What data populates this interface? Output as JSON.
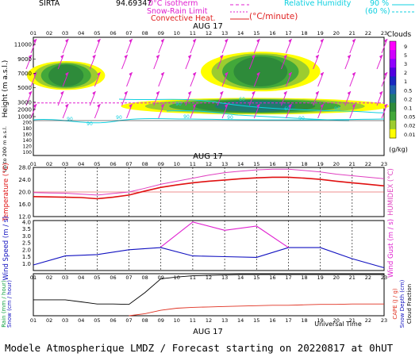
{
  "header": {
    "site": "SIRTA",
    "coords": "94.69347",
    "legend_isotherm_label": "0°C isotherm",
    "legend_snow_label": "Snow-Rain Limit",
    "legend_convective_label": "Convective Heat.",
    "legend_convective_unit": "(°C/minute)",
    "legend_rh_label": "Relative Humidity",
    "legend_rh_90": "90 %",
    "legend_rh_60": "(60 %)"
  },
  "footer": {
    "title": "Modele Atmospherique LMDZ / Forecast starting on 20220817 at 0hUT",
    "time_label": "Universal Time"
  },
  "colors": {
    "isotherm": "#e020d0",
    "humidity": "#10d0e0",
    "temperature": "#e01010",
    "humidex": "#e040c0",
    "wind_speed": "#1010c0",
    "wind_gust": "#e020d0",
    "rain": "#000000",
    "cape": "#e03020"
  },
  "chart_data": [
    {
      "type": "heatmap",
      "name": "clouds",
      "date_label": "AUG 17",
      "x_ticks": [
        "01",
        "02",
        "03",
        "04",
        "05",
        "06",
        "07",
        "08",
        "09",
        "10",
        "11",
        "12",
        "13",
        "14",
        "15",
        "16",
        "17",
        "18",
        "19",
        "20",
        "21",
        "22",
        "23"
      ],
      "ylabel": "Height (m a.s.l.)",
      "ylabel_low": "Up to 200 m a.s.l.",
      "y_ticks_upper": [
        "11000",
        "9000",
        "7000",
        "5000",
        "3000",
        "2000",
        "1000"
      ],
      "y_ticks_lower": [
        "200",
        "180",
        "160",
        "140",
        "120",
        "100"
      ],
      "colorbar_title": "Clouds",
      "colorbar_unit": "(g/kg)",
      "colorbar_labels": [
        "9",
        "5",
        "3",
        "2",
        "1",
        "0.5",
        "0.2",
        "0.1",
        "0.05",
        "0.02",
        "0.01"
      ],
      "colorbar_colors": [
        "#ff00ff",
        "#d000ff",
        "#9000ff",
        "#5000e0",
        "#1828c0",
        "#2060b0",
        "#1f7a70",
        "#2e8b3a",
        "#42a83a",
        "#9ccc30",
        "#fffe00"
      ],
      "cloud_regions": [
        {
          "x_from": 0.6,
          "x_to": 5.5,
          "y_from": 4700,
          "y_to": 8700
        },
        {
          "x_from": 11.5,
          "x_to": 19.0,
          "y_from": 4500,
          "y_to": 10000
        },
        {
          "x_from": 6.5,
          "x_to": 23.3,
          "y_from": 1300,
          "y_to": 3600
        }
      ],
      "humidity_isoline_values": [
        "90",
        "90",
        "90",
        "60",
        "60",
        "90",
        "90",
        "90",
        "90",
        "90"
      ]
    },
    {
      "type": "line",
      "name": "temperature",
      "ylabel": "Temperature (°C)",
      "ylabel_right": "HUMIDEX (°C)",
      "ylim": [
        12,
        28
      ],
      "y_ticks": [
        "28.0",
        "24.0",
        "20.0",
        "16.0",
        "12.0"
      ],
      "x": [
        1,
        2,
        3,
        4,
        5,
        6,
        7,
        8,
        9,
        10,
        11,
        12,
        13,
        14,
        15,
        16,
        17,
        18,
        19,
        20,
        21,
        22,
        23
      ],
      "series": [
        {
          "name": "Temperature",
          "values": [
            18.5,
            18.4,
            18.3,
            18.2,
            17.8,
            18.3,
            19.0,
            20.3,
            21.5,
            22.3,
            23.0,
            23.5,
            23.9,
            24.3,
            24.6,
            24.8,
            24.8,
            24.5,
            24.1,
            23.5,
            23.0,
            22.5,
            22.0
          ]
        },
        {
          "name": "HUMIDEX",
          "values": [
            19.8,
            19.7,
            19.6,
            19.3,
            19.0,
            19.5,
            20.0,
            21.2,
            22.5,
            23.5,
            24.5,
            25.5,
            26.3,
            26.8,
            27.2,
            27.4,
            27.4,
            27.0,
            26.5,
            25.8,
            25.3,
            24.8,
            24.3
          ]
        }
      ]
    },
    {
      "type": "line",
      "name": "wind",
      "ylabel": "Wind Speed (m / s)",
      "ylabel_right": "Wind Gust (m / s)",
      "ylim": [
        0.5,
        4.1
      ],
      "y_ticks": [
        "4.0",
        "3.5",
        "3.0",
        "2.5",
        "2.0",
        "1.5",
        "1.0"
      ],
      "series": [
        {
          "name": "Wind Speed",
          "x": [
            1,
            3,
            5,
            7,
            9,
            11,
            13,
            15,
            17,
            19,
            21,
            23
          ],
          "values": [
            0.9,
            1.55,
            1.65,
            2.0,
            2.15,
            1.55,
            1.5,
            1.45,
            2.15,
            2.15,
            1.35,
            0.7
          ]
        },
        {
          "name": "Wind Gust",
          "x": [
            9,
            11,
            13,
            15,
            17
          ],
          "values": [
            2.2,
            4.0,
            3.4,
            3.7,
            2.15
          ]
        }
      ]
    },
    {
      "type": "line",
      "name": "precipitation",
      "ylabel_left": [
        "Rain (mm / hour)",
        "Snow (cm / hour)"
      ],
      "ylabel_right": [
        "CAPE (J / g)",
        "Snow Depth (cm)",
        "Cloud Fraction"
      ],
      "date_label": "AUG 17",
      "xlabel": "Universal Time",
      "series": [
        {
          "name": "Cloud fraction",
          "x": [
            1,
            2,
            3,
            4,
            5,
            6,
            7,
            8,
            9,
            10,
            11,
            12,
            13,
            14,
            15,
            16,
            17,
            18,
            19,
            20,
            21,
            22,
            23
          ],
          "values": [
            0.38,
            0.38,
            0.38,
            0.33,
            0.28,
            0.28,
            0.27,
            0.55,
            0.88,
            0.92,
            0.95,
            0.96,
            0.97,
            0.98,
            0.98,
            0.98,
            0.98,
            0.98,
            0.98,
            0.98,
            0.98,
            0.98,
            0.98
          ]
        },
        {
          "name": "CAPE",
          "x": [
            7,
            8,
            9,
            10,
            11,
            12,
            13,
            14,
            15,
            16,
            17,
            18,
            19,
            20,
            21,
            22,
            23
          ],
          "values": [
            0.0,
            0.05,
            0.13,
            0.18,
            0.2,
            0.21,
            0.22,
            0.23,
            0.24,
            0.25,
            0.25,
            0.26,
            0.27,
            0.27,
            0.28,
            0.28,
            0.28
          ]
        }
      ]
    }
  ]
}
